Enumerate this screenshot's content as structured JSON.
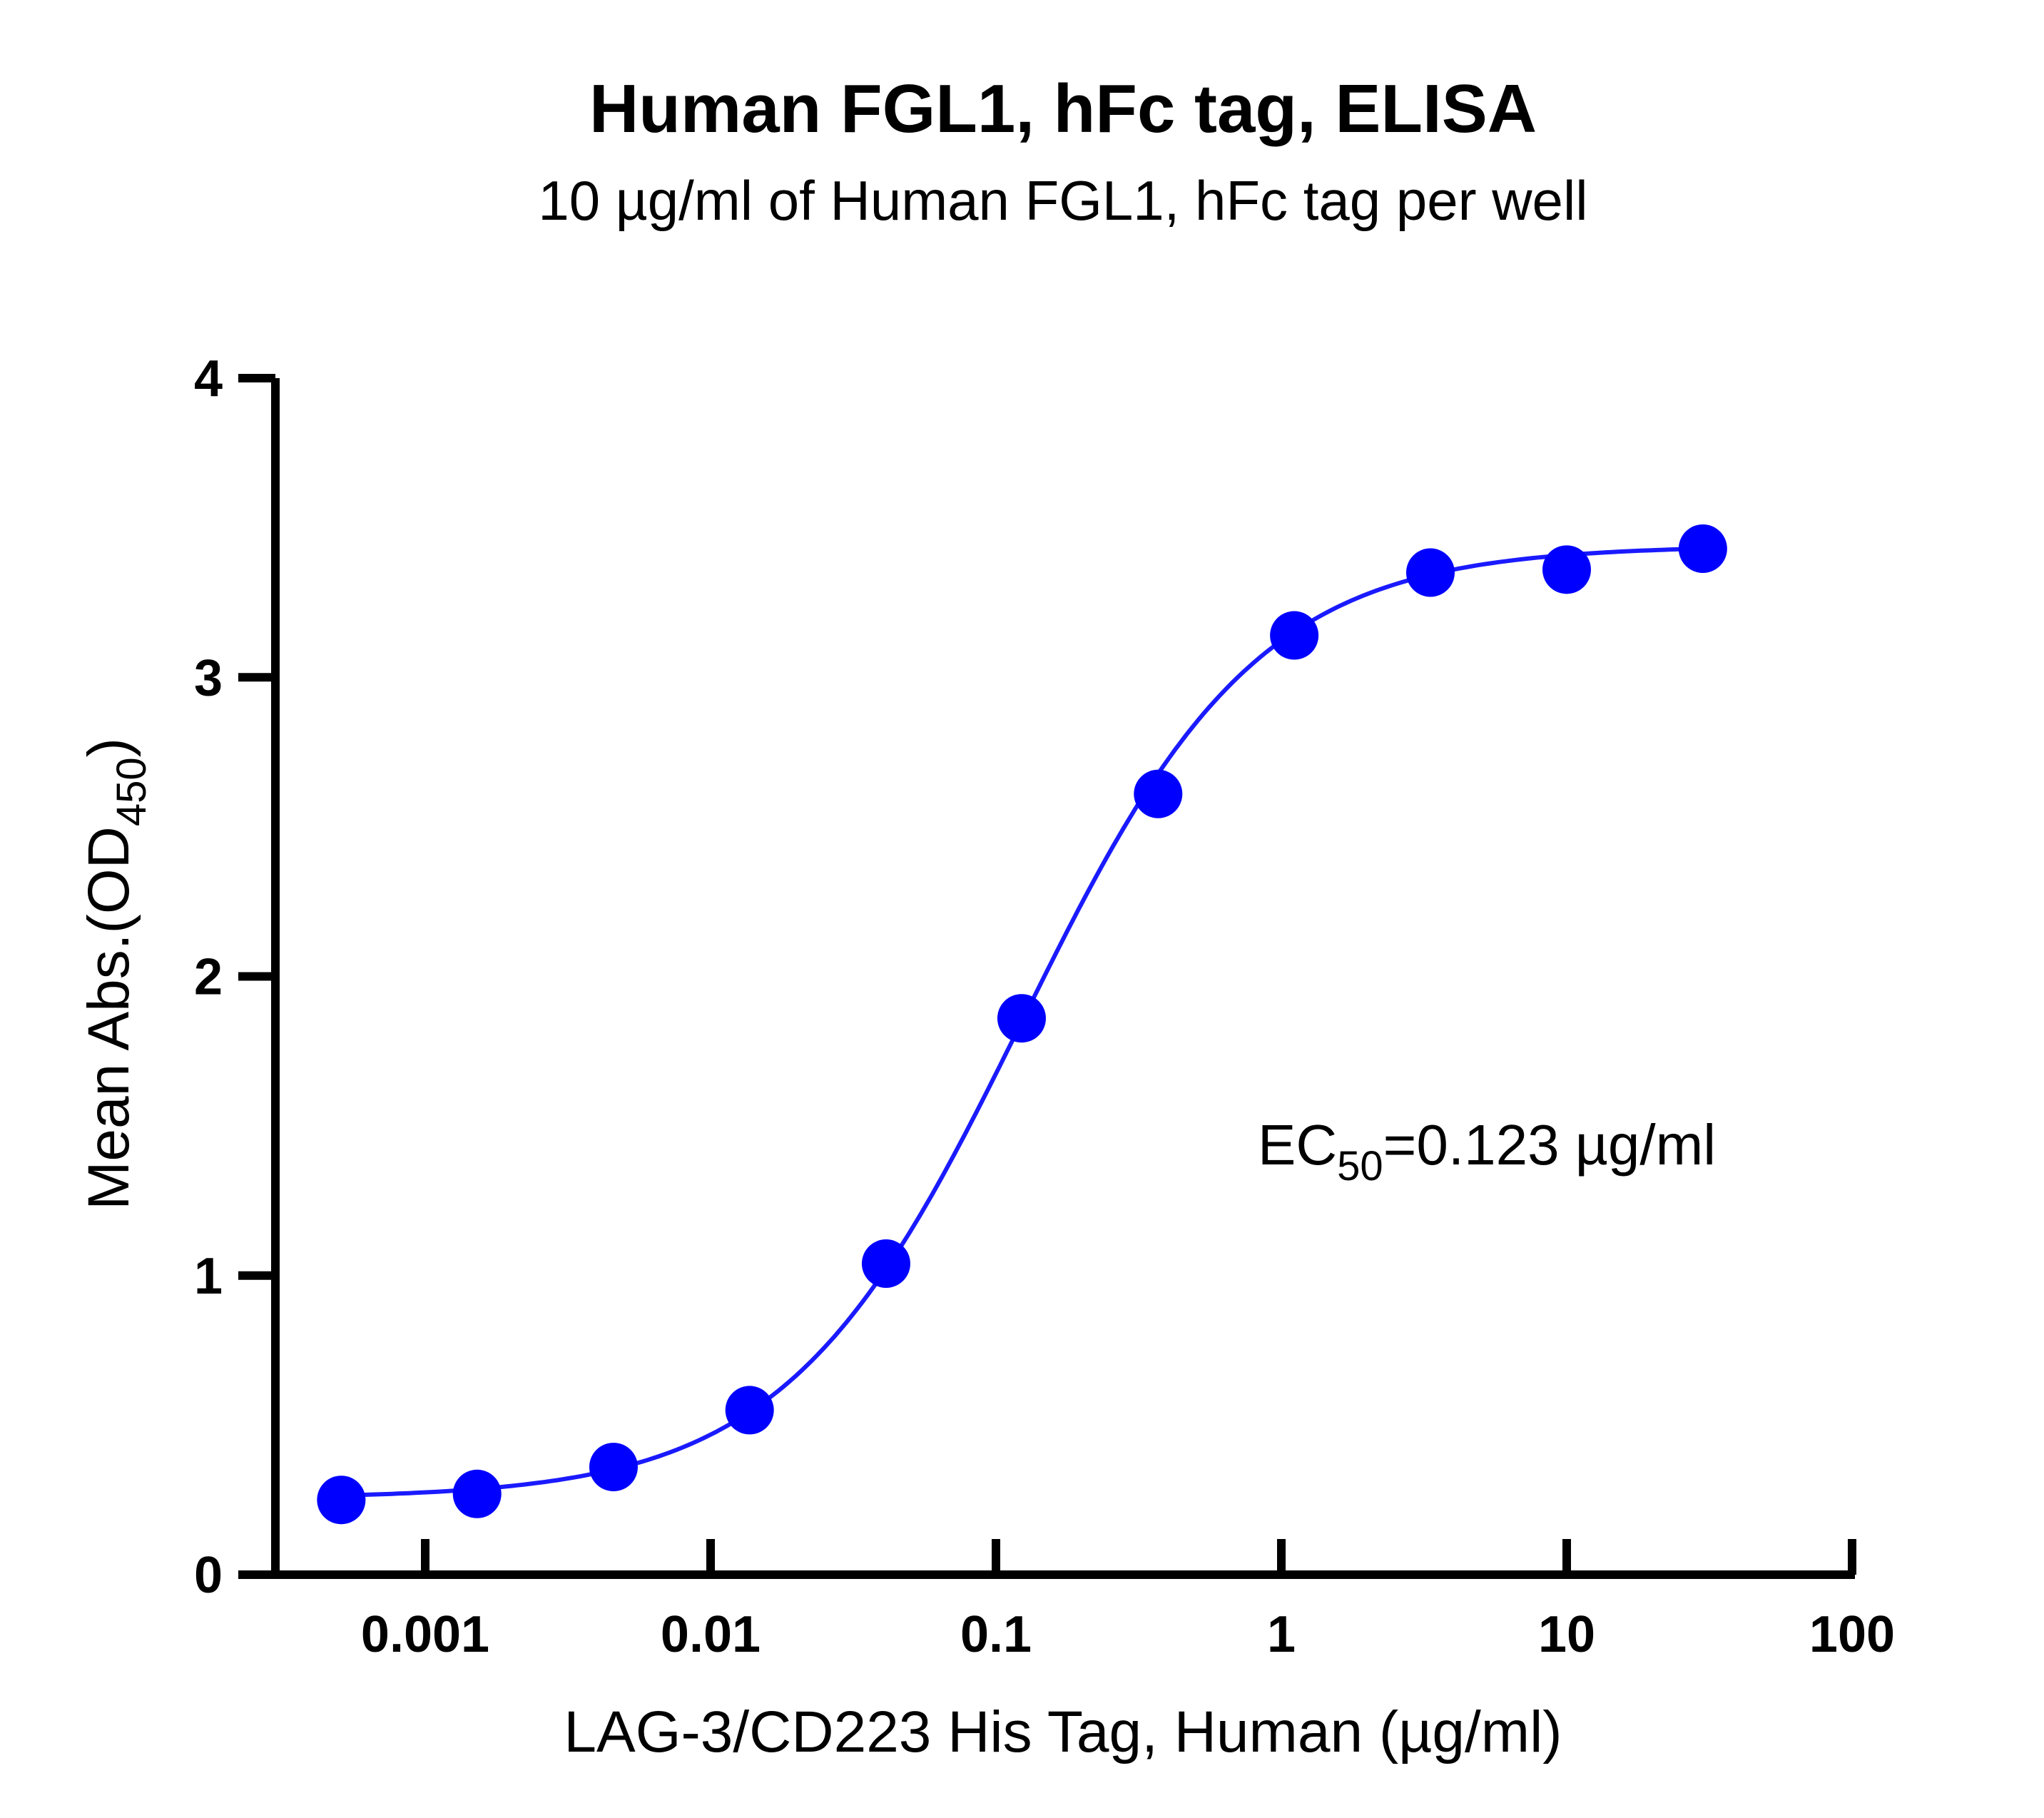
{
  "chart_data": {
    "type": "scatter",
    "title": "Human FGL1, hFc tag, ELISA",
    "subtitle": "10 µg/ml of Human FGL1, hFc tag per well",
    "xlabel": "LAG-3/CD223 His Tag, Human (µg/ml)",
    "ylabel": {
      "main": "Mean Abs.(OD",
      "sub": "450",
      "tail": ")"
    },
    "x_scale": "log",
    "xlim": [
      0.0005,
      100
    ],
    "ylim": [
      0,
      4
    ],
    "x_ticks": [
      {
        "value": 0.001,
        "label": "0.001"
      },
      {
        "value": 0.01,
        "label": "0.01"
      },
      {
        "value": 0.1,
        "label": "0.1"
      },
      {
        "value": 1,
        "label": "1"
      },
      {
        "value": 10,
        "label": "10"
      },
      {
        "value": 100,
        "label": "100"
      }
    ],
    "y_ticks": [
      {
        "value": 0,
        "label": "0"
      },
      {
        "value": 1,
        "label": "1"
      },
      {
        "value": 2,
        "label": "2"
      },
      {
        "value": 3,
        "label": "3"
      },
      {
        "value": 4,
        "label": "4"
      }
    ],
    "series": [
      {
        "x": [
          0.000508,
          0.00152,
          0.00457,
          0.0137,
          0.0412,
          0.123,
          0.37,
          1.11,
          3.33,
          10,
          30
        ],
        "y": [
          0.25,
          0.27,
          0.36,
          0.55,
          1.04,
          1.86,
          2.61,
          3.14,
          3.35,
          3.36,
          3.43
        ],
        "color": "#0000ff",
        "fit": "4PL"
      }
    ],
    "fit_params": {
      "bottom": 0.255,
      "top": 3.44,
      "ec50": 0.123,
      "hill": 1.05
    },
    "annotation": {
      "prefix": "EC",
      "sub": "50",
      "suffix": "=0.123 µg/ml"
    },
    "grid": false,
    "legend": "none"
  }
}
